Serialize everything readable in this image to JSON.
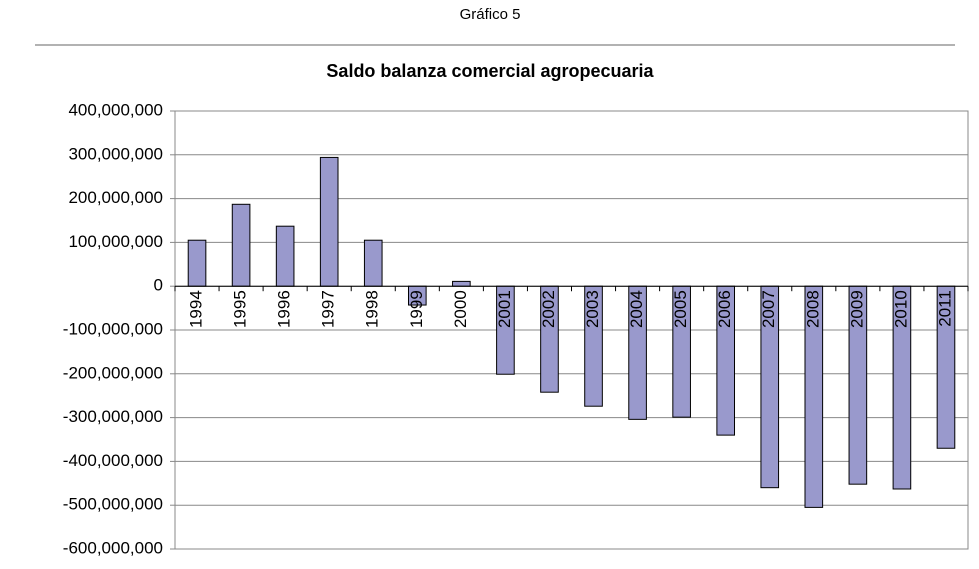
{
  "caption": "Gráfico 5",
  "chart_data": {
    "type": "bar",
    "title": "Saldo balanza comercial agropecuaria",
    "categories": [
      "1994",
      "1995",
      "1996",
      "1997",
      "1998",
      "1999",
      "2000",
      "2001",
      "2002",
      "2003",
      "2004",
      "2005",
      "2006",
      "2007",
      "2008",
      "2009",
      "2010",
      "2011"
    ],
    "values": [
      105000000,
      187000000,
      137000000,
      294000000,
      105000000,
      -43000000,
      11000000,
      -201000000,
      -242000000,
      -274000000,
      -304000000,
      -299000000,
      -340000000,
      -460000000,
      -505000000,
      -452000000,
      -463000000,
      -370000000
    ],
    "color": "#9999cc",
    "ylim": [
      -600000000,
      400000000
    ],
    "yticks": [
      {
        "value": -600000000,
        "label": "-600,000,000"
      },
      {
        "value": -500000000,
        "label": "-500,000,000"
      },
      {
        "value": -400000000,
        "label": "-400,000,000"
      },
      {
        "value": -300000000,
        "label": "-300,000,000"
      },
      {
        "value": -200000000,
        "label": "-200,000,000"
      },
      {
        "value": -100000000,
        "label": "-100,000,000"
      },
      0,
      {
        "value": 100000000,
        "label": "100,000,000"
      },
      {
        "value": 200000000,
        "label": "200,000,000"
      },
      {
        "value": 300000000,
        "label": "300,000,000"
      },
      {
        "value": 400000000,
        "label": "400,000,000"
      }
    ],
    "grid": true
  }
}
